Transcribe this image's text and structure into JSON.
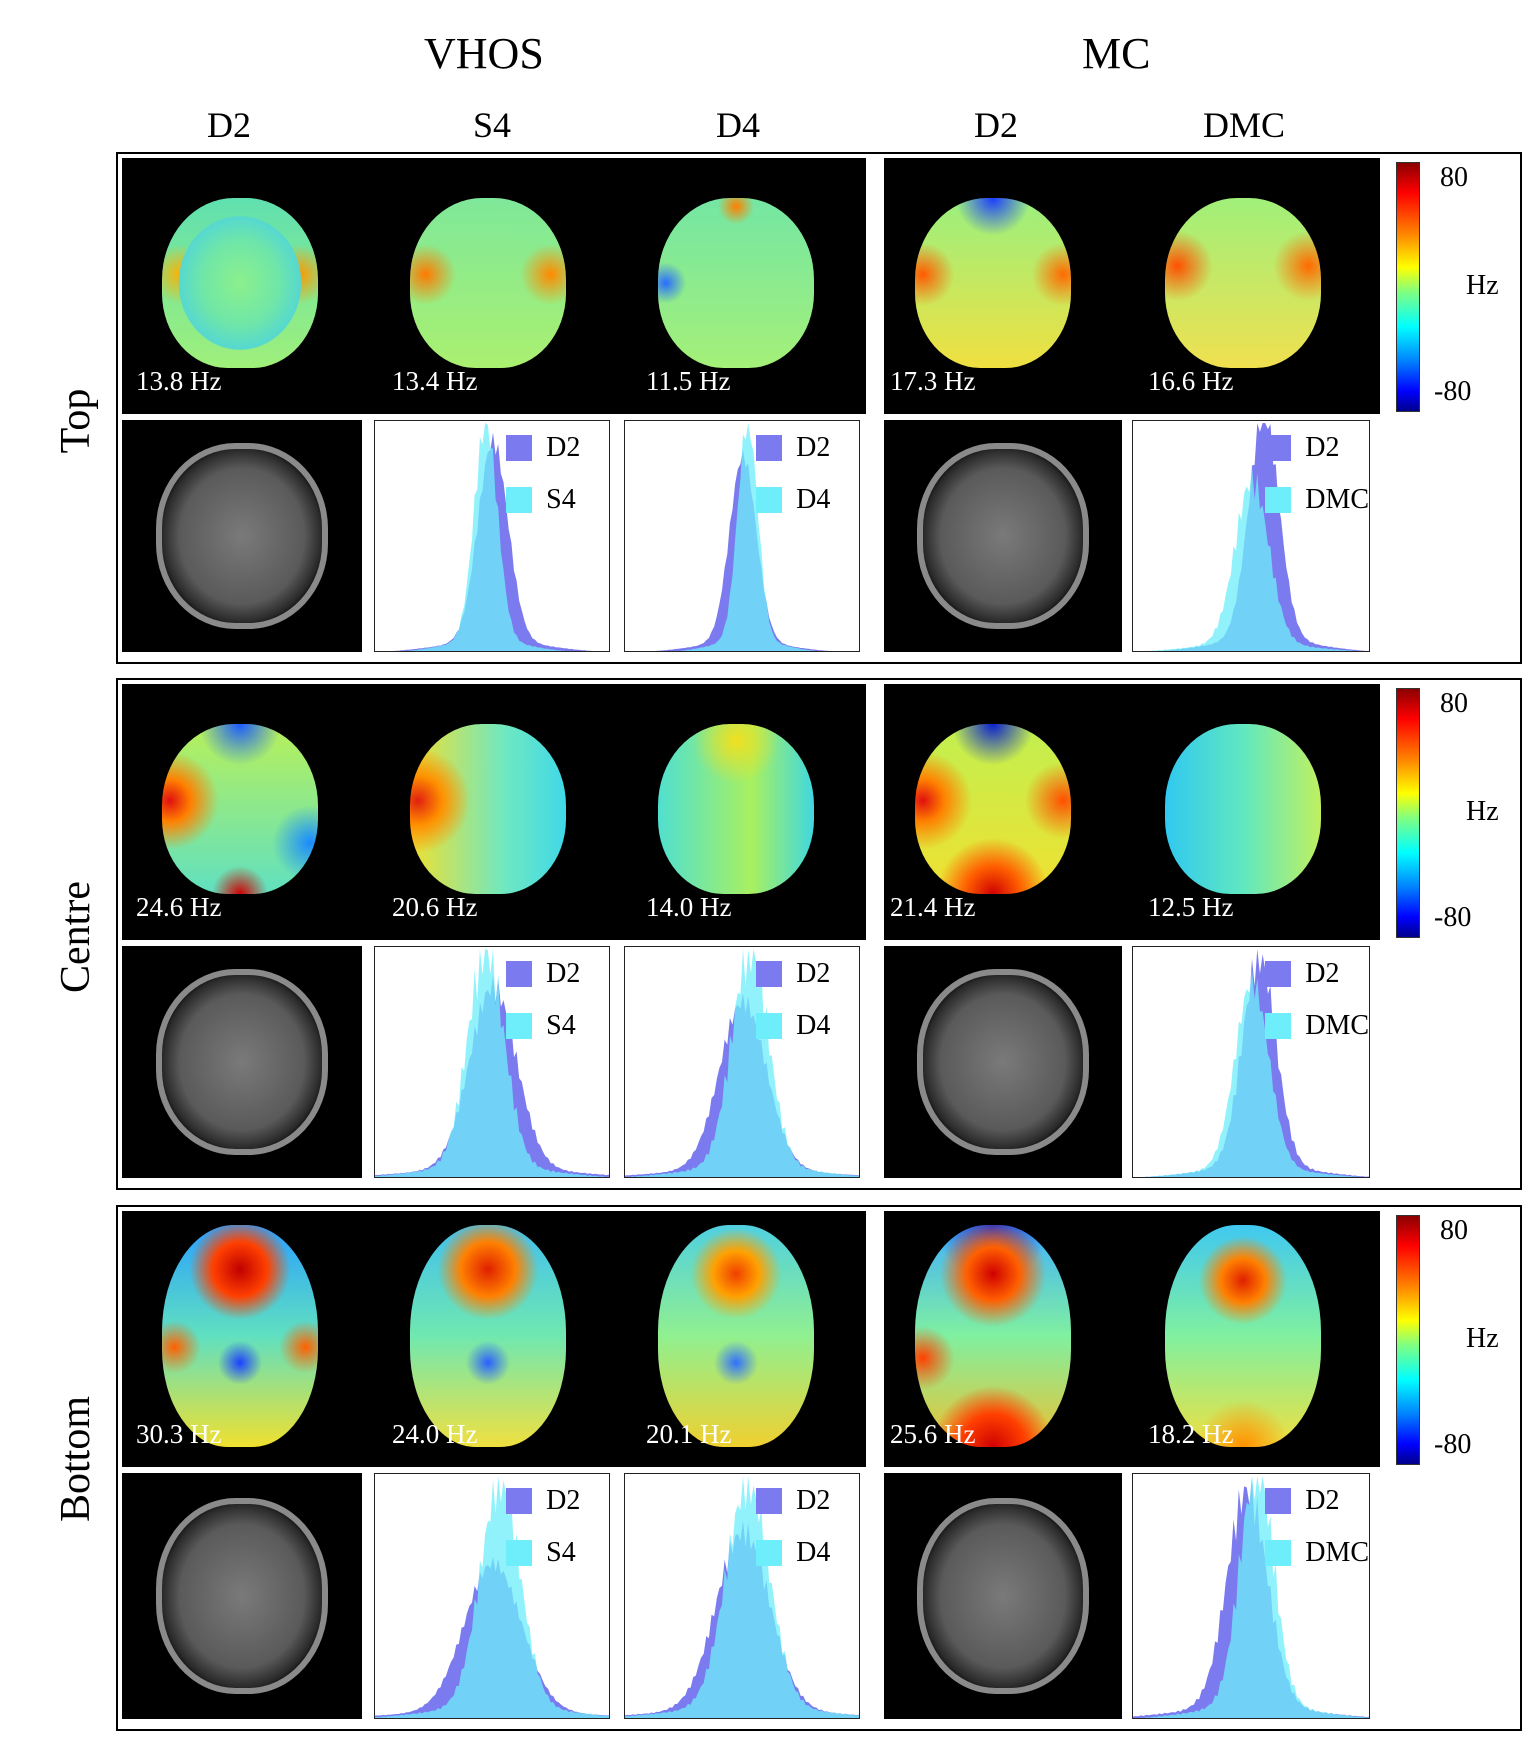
{
  "groups": {
    "vhos": "VHOS",
    "mc": "MC"
  },
  "columns": [
    "D2",
    "S4",
    "D4",
    "D2",
    "DMC"
  ],
  "colorbar": {
    "max": "80",
    "unit": "Hz",
    "min": "-80"
  },
  "colors": {
    "d2": "#7b7bef",
    "alt": "#6eeefa",
    "overlap": "#3fb8f4"
  },
  "rows": [
    {
      "label": "Top",
      "freqs": [
        "13.8 Hz",
        "13.4 Hz",
        "11.5 Hz",
        "17.3 Hz",
        "16.6 Hz"
      ],
      "legends": [
        [
          "D2",
          "S4"
        ],
        [
          "D2",
          "D4"
        ],
        [
          "D2",
          "DMC"
        ]
      ]
    },
    {
      "label": "Centre",
      "freqs": [
        "24.6 Hz",
        "20.6 Hz",
        "14.0 Hz",
        "21.4 Hz",
        "12.5 Hz"
      ],
      "legends": [
        [
          "D2",
          "S4"
        ],
        [
          "D2",
          "D4"
        ],
        [
          "D2",
          "DMC"
        ]
      ]
    },
    {
      "label": "Bottom",
      "freqs": [
        "30.3 Hz",
        "24.0 Hz",
        "20.1 Hz",
        "25.6 Hz",
        "18.2 Hz"
      ],
      "legends": [
        [
          "D2",
          "S4"
        ],
        [
          "D2",
          "D4"
        ],
        [
          "D2",
          "DMC"
        ]
      ]
    }
  ]
}
